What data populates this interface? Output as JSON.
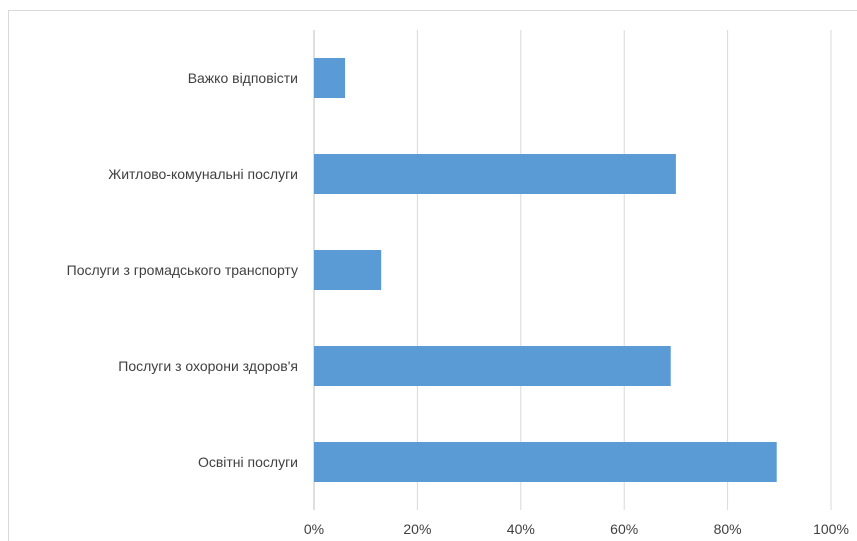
{
  "chart_data": {
    "type": "bar",
    "orientation": "horizontal",
    "categories": [
      "Важко відповісти",
      "Житлово-комунальні послуги",
      "Послуги з громадського транспорту",
      "Послуги з охорони здоров'я",
      "Освітні послуги"
    ],
    "values": [
      6,
      70,
      13,
      69,
      89.5
    ],
    "value_unit": "%",
    "xlim": [
      0,
      100
    ],
    "xticks": [
      "0%",
      "20%",
      "40%",
      "60%",
      "80%",
      "100%"
    ],
    "bar_color": "#5b9bd5",
    "grid": true,
    "legend": "none"
  }
}
